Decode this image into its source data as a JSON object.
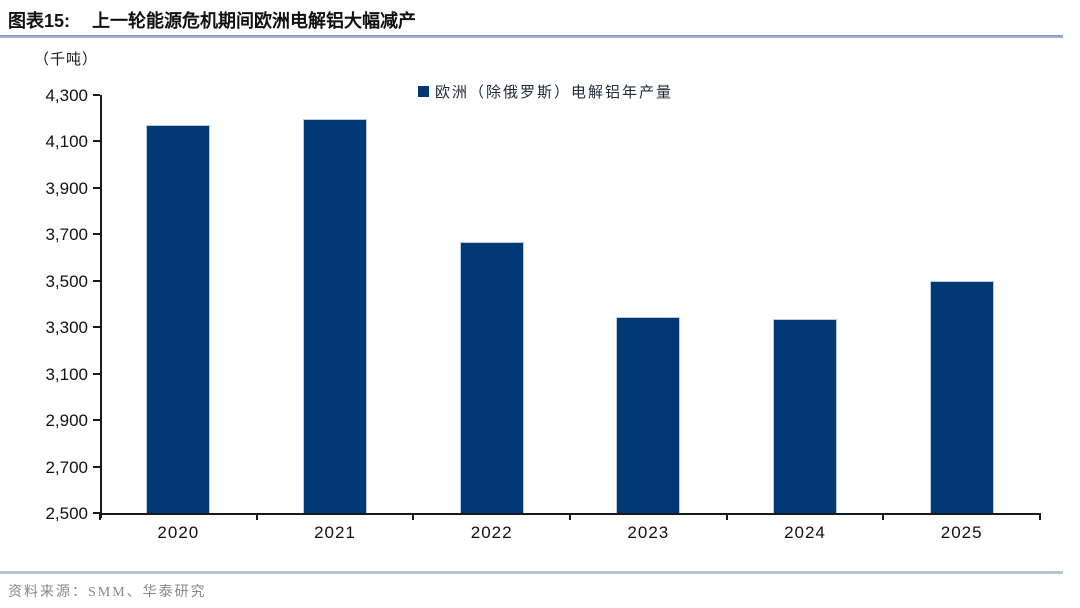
{
  "header": {
    "title_prefix": "图表15:",
    "title": "上一轮能源危机期间欧洲电解铝大幅减产"
  },
  "chart_data": {
    "type": "bar",
    "title": "上一轮能源危机期间欧洲电解铝大幅减产",
    "unit_label": "（千吨）",
    "legend": "欧洲（除俄罗斯）电解铝年产量",
    "legend_position": "top-center",
    "categories": [
      "2020",
      "2021",
      "2022",
      "2023",
      "2024",
      "2025"
    ],
    "values": [
      4170,
      4195,
      3665,
      3345,
      3335,
      3500
    ],
    "xlabel": "",
    "ylabel": "千吨",
    "ylim": [
      2500,
      4300
    ],
    "ytick_step": 200,
    "ytick_labels": [
      "4,300",
      "4,100",
      "3,900",
      "3,700",
      "3,500",
      "3,300",
      "3,100",
      "2,900",
      "2,700",
      "2,500"
    ],
    "grid": false,
    "bar_color": "#003876",
    "colors": {
      "bar": "#003876",
      "axis": "#1a1a1a",
      "rule": "#9db3cd",
      "source_text": "#84878c"
    }
  },
  "footer": {
    "source": "资料来源：SMM、华泰研究"
  }
}
